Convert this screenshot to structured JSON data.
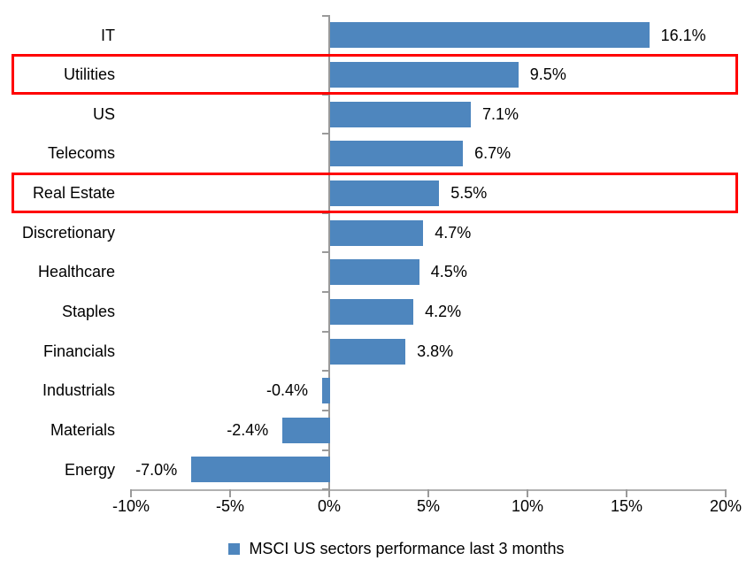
{
  "chart_data": {
    "type": "bar",
    "orientation": "horizontal",
    "title": "",
    "categories": [
      "IT",
      "Utilities",
      "US",
      "Telecoms",
      "Real Estate",
      "Discretionary",
      "Healthcare",
      "Staples",
      "Financials",
      "Industrials",
      "Materials",
      "Energy"
    ],
    "values": [
      16.1,
      9.5,
      7.1,
      6.7,
      5.5,
      4.7,
      4.5,
      4.2,
      3.8,
      -0.4,
      -2.4,
      -7.0
    ],
    "data_labels": [
      "16.1%",
      "9.5%",
      "7.1%",
      "6.7%",
      "5.5%",
      "4.7%",
      "4.5%",
      "4.2%",
      "3.8%",
      "-0.4%",
      "-2.4%",
      "-7.0%"
    ],
    "xlim": [
      -10,
      20
    ],
    "x_tick_values": [
      -10,
      -5,
      0,
      5,
      10,
      15,
      20
    ],
    "x_ticks": [
      "-10%",
      "-5%",
      "0%",
      "5%",
      "10%",
      "15%",
      "20%"
    ],
    "grid": false,
    "legend": "MSCI US sectors performance last 3 months",
    "legend_position": "bottom",
    "bar_color": "#4e86be",
    "axis_color": "#a6a6a6",
    "highlight_color": "#ff0000",
    "highlighted_categories": [
      "Utilities",
      "Real Estate"
    ]
  }
}
